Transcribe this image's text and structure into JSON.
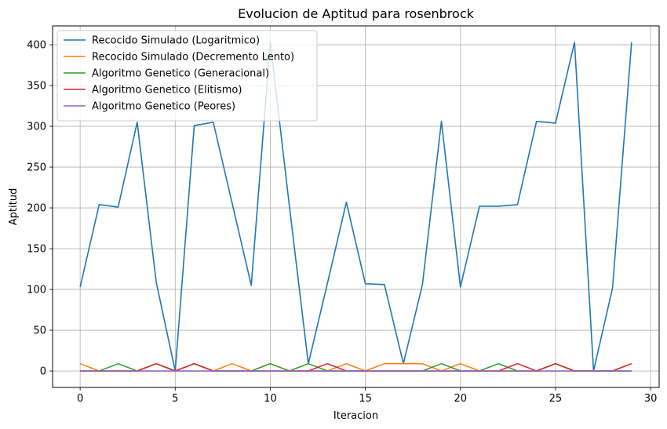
{
  "chart_data": {
    "type": "line",
    "title": "Evolucion de Aptitud para rosenbrock",
    "xlabel": "Iteracion",
    "ylabel": "Aptitud",
    "xlim": [
      -1.45,
      30.45
    ],
    "ylim": [
      -20.15,
      423.15
    ],
    "xticks": [
      0,
      5,
      10,
      15,
      20,
      25,
      30
    ],
    "yticks": [
      0,
      50,
      100,
      150,
      200,
      250,
      300,
      350,
      400
    ],
    "grid": true,
    "legend_position": "top-left",
    "x": [
      0,
      1,
      2,
      3,
      4,
      5,
      6,
      7,
      8,
      9,
      10,
      11,
      12,
      13,
      14,
      15,
      16,
      17,
      18,
      19,
      20,
      21,
      22,
      23,
      24,
      25,
      26,
      27,
      28,
      29
    ],
    "series": [
      {
        "name": "Recocido Simulado (Logaritmico)",
        "color": "#1f77b4",
        "values": [
          103,
          204,
          201,
          305,
          109,
          0,
          301,
          305,
          205,
          105,
          403,
          203,
          9,
          107,
          207,
          107,
          106,
          9,
          106,
          306,
          103,
          202,
          202,
          204,
          306,
          304,
          403,
          0,
          102,
          403
        ]
      },
      {
        "name": "Recocido Simulado (Decremento Lento)",
        "color": "#ff7f0e",
        "values": [
          9,
          0,
          0,
          0,
          9,
          0,
          9,
          0,
          9,
          0,
          9,
          0,
          0,
          0,
          9,
          0,
          9,
          9,
          9,
          0,
          9,
          0,
          0,
          0,
          0,
          9,
          0,
          0,
          0,
          9
        ]
      },
      {
        "name": "Algoritmo Genetico (Generacional)",
        "color": "#2ca02c",
        "values": [
          0,
          0,
          9,
          0,
          9,
          0,
          9,
          0,
          0,
          0,
          9,
          0,
          9,
          0,
          0,
          0,
          0,
          0,
          0,
          9,
          0,
          0,
          9,
          0,
          0,
          9,
          0,
          0,
          0,
          0
        ]
      },
      {
        "name": "Algoritmo Genetico (Elitismo)",
        "color": "#d62728",
        "values": [
          0,
          0,
          0,
          0,
          9,
          0,
          9,
          0,
          0,
          0,
          0,
          0,
          0,
          9,
          0,
          0,
          0,
          0,
          0,
          0,
          0,
          0,
          0,
          9,
          0,
          9,
          0,
          0,
          0,
          9
        ]
      },
      {
        "name": "Algoritmo Genetico (Peores)",
        "color": "#9467bd",
        "values": [
          0,
          0,
          0,
          0,
          0,
          0,
          0,
          0,
          0,
          0,
          0,
          0,
          0,
          0,
          0,
          0,
          0,
          0,
          0,
          0,
          0,
          0,
          0,
          0,
          0,
          0,
          0,
          0,
          0,
          0
        ]
      }
    ]
  }
}
